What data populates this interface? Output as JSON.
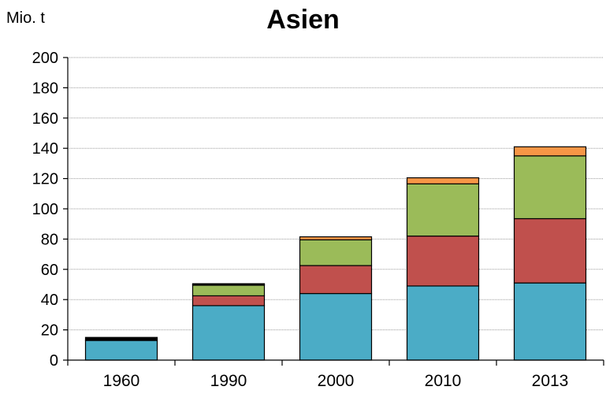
{
  "chart_data": {
    "type": "bar",
    "stacked": true,
    "title": "Asien",
    "ylabel": "Mio. t",
    "xlabel": "",
    "categories": [
      "1960",
      "1990",
      "2000",
      "2010",
      "2013"
    ],
    "ylim": [
      0,
      200
    ],
    "yticks": [
      0,
      20,
      40,
      60,
      80,
      100,
      120,
      140,
      160,
      180,
      200
    ],
    "grid": true,
    "series": [
      {
        "values": [
          13,
          36,
          44,
          49,
          51
        ],
        "color": "#4BACC6"
      },
      {
        "values": [
          0,
          6.5,
          18.5,
          33,
          42.5
        ],
        "color": "#C0504D"
      },
      {
        "values": [
          0,
          7,
          17,
          34.5,
          41.5
        ],
        "color": "#9BBB59"
      },
      {
        "values": [
          0,
          0.5,
          2,
          4,
          6
        ],
        "color": "#F79646"
      },
      {
        "values": [
          2,
          0.5,
          0,
          0,
          0
        ],
        "color": "#000000"
      }
    ]
  }
}
